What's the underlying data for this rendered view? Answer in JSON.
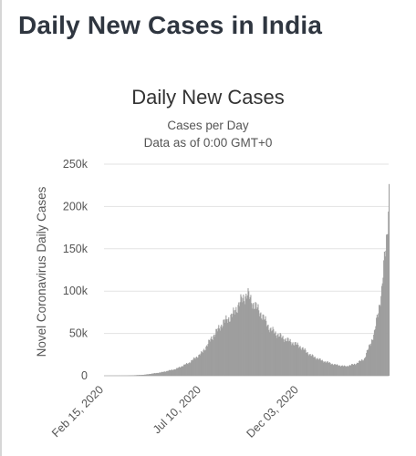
{
  "page": {
    "title": "Daily New Cases in India"
  },
  "chart_data": {
    "type": "bar",
    "title": "Daily New Cases",
    "subtitle_lines": [
      "Cases per Day",
      "Data as of 0:00 GMT+0"
    ],
    "ylabel": "Novel Coronavirus Daily Cases",
    "xlabel": "",
    "ylim": [
      0,
      250000
    ],
    "y_ticks": [
      0,
      50000,
      100000,
      150000,
      200000,
      250000
    ],
    "y_tick_labels": [
      "0",
      "50k",
      "100k",
      "150k",
      "200k",
      "250k"
    ],
    "x_tick_labels": [
      "Feb 15, 2020",
      "Jul 10, 2020",
      "Dec 03, 2020"
    ],
    "x_ticks": [
      "2020-02-15",
      "2020-07-10",
      "2020-12-03"
    ],
    "x_start": "2020-02-15",
    "x_end": "2021-04-16",
    "bar_color": "#9e9e9e",
    "grid": true,
    "key_points": [
      {
        "date": "2020-02-15",
        "value": 0
      },
      {
        "date": "2020-03-20",
        "value": 150
      },
      {
        "date": "2020-04-15",
        "value": 1200
      },
      {
        "date": "2020-05-10",
        "value": 4000
      },
      {
        "date": "2020-06-01",
        "value": 8000
      },
      {
        "date": "2020-06-20",
        "value": 15000
      },
      {
        "date": "2020-07-10",
        "value": 27000
      },
      {
        "date": "2020-07-25",
        "value": 45000
      },
      {
        "date": "2020-08-10",
        "value": 62000
      },
      {
        "date": "2020-08-25",
        "value": 72000
      },
      {
        "date": "2020-09-05",
        "value": 87000
      },
      {
        "date": "2020-09-16",
        "value": 97000
      },
      {
        "date": "2020-09-22",
        "value": 88000
      },
      {
        "date": "2020-10-05",
        "value": 75000
      },
      {
        "date": "2020-10-20",
        "value": 55000
      },
      {
        "date": "2020-11-05",
        "value": 46000
      },
      {
        "date": "2020-11-20",
        "value": 40000
      },
      {
        "date": "2020-12-03",
        "value": 35000
      },
      {
        "date": "2020-12-20",
        "value": 24000
      },
      {
        "date": "2021-01-05",
        "value": 18000
      },
      {
        "date": "2021-01-25",
        "value": 13000
      },
      {
        "date": "2021-02-10",
        "value": 11000
      },
      {
        "date": "2021-02-25",
        "value": 14000
      },
      {
        "date": "2021-03-10",
        "value": 20000
      },
      {
        "date": "2021-03-25",
        "value": 50000
      },
      {
        "date": "2021-04-05",
        "value": 100000
      },
      {
        "date": "2021-04-10",
        "value": 145000
      },
      {
        "date": "2021-04-13",
        "value": 170000
      },
      {
        "date": "2021-04-16",
        "value": 217000
      }
    ]
  }
}
